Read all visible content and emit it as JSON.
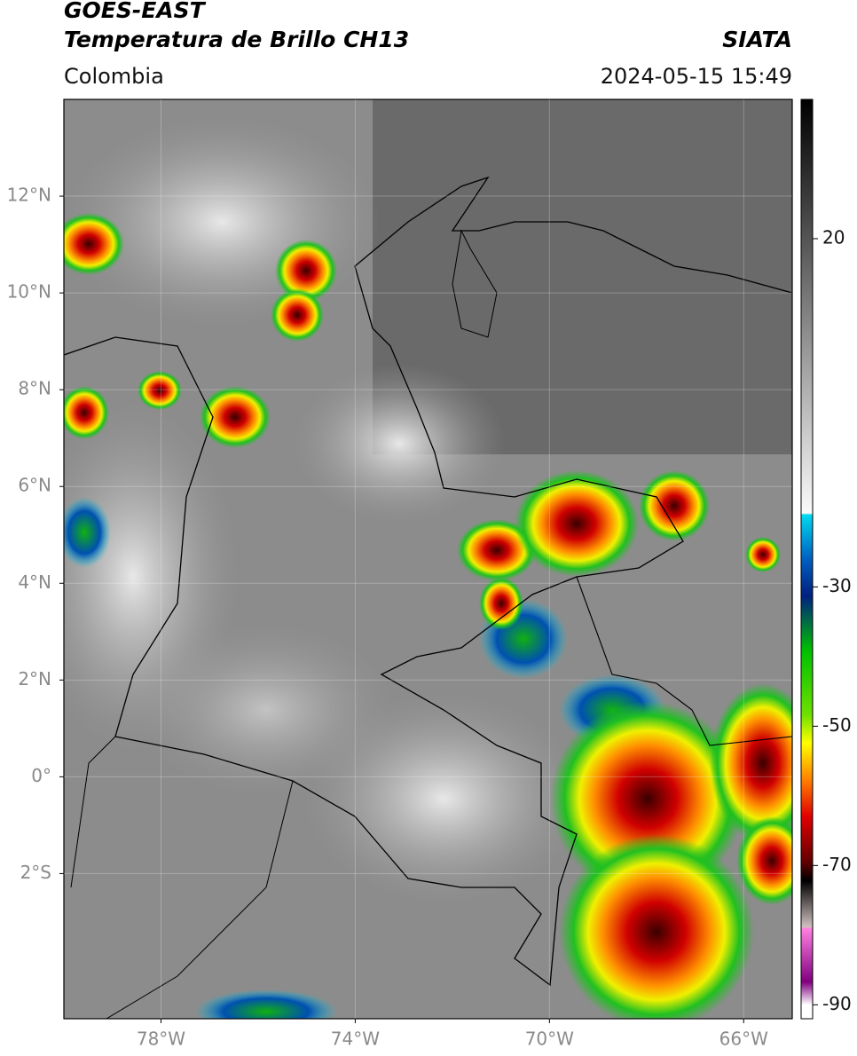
{
  "header": {
    "title_line1": "GOES-EAST",
    "title_line2": "Temperatura de Brillo CH13",
    "source": "SIATA",
    "region": "Colombia",
    "datetime": "2024-05-15 15:49"
  },
  "map": {
    "xlim": [
      -80,
      -65
    ],
    "ylim": [
      -5,
      14
    ],
    "grid": true,
    "xticks": [
      {
        "value": -78,
        "label": "78°W"
      },
      {
        "value": -74,
        "label": "74°W"
      },
      {
        "value": -70,
        "label": "70°W"
      },
      {
        "value": -66,
        "label": "66°W"
      }
    ],
    "yticks": [
      {
        "value": 12,
        "label": "12°N"
      },
      {
        "value": 10,
        "label": "10°N"
      },
      {
        "value": 8,
        "label": "8°N"
      },
      {
        "value": 6,
        "label": "6°N"
      },
      {
        "value": 4,
        "label": "4°N"
      },
      {
        "value": 2,
        "label": "2°N"
      },
      {
        "value": 0,
        "label": "0°"
      },
      {
        "value": -2,
        "label": "2°S"
      }
    ]
  },
  "colorbar": {
    "lim": [
      -92,
      40
    ],
    "ticks": [
      20,
      -30,
      -50,
      -70,
      -90
    ]
  }
}
